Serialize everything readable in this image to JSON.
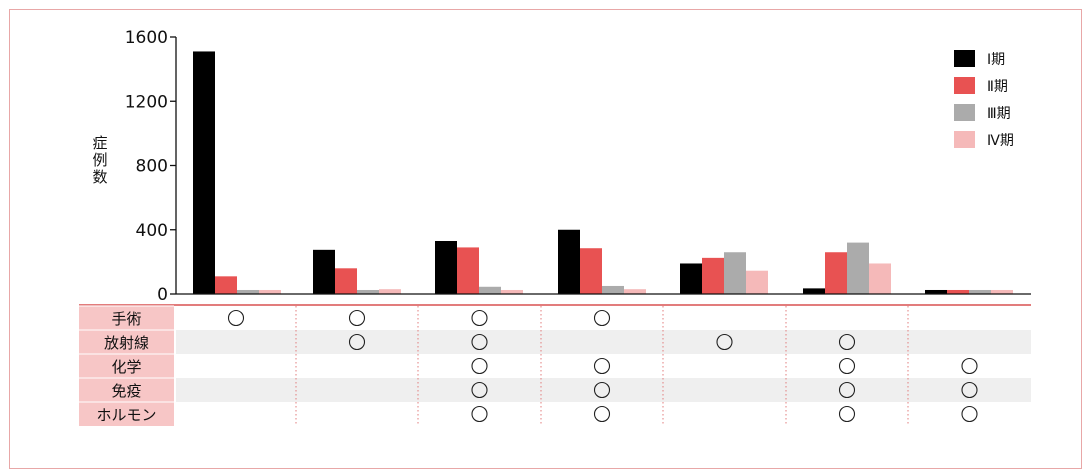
{
  "chart_data": {
    "type": "bar",
    "ylabel": "症例数",
    "ylim": [
      0,
      1600
    ],
    "yticks": [
      0,
      400,
      800,
      1200,
      1600
    ],
    "grid": false,
    "legend_position": "top-right",
    "categories": [
      "",
      "",
      "",
      "",
      "",
      "",
      ""
    ],
    "series": [
      {
        "name": "Ⅰ期",
        "color": "#000000",
        "values": [
          1510,
          275,
          330,
          400,
          190,
          35,
          25
        ]
      },
      {
        "name": "Ⅱ期",
        "color": "#e85252",
        "values": [
          110,
          160,
          290,
          285,
          225,
          260,
          25
        ]
      },
      {
        "name": "Ⅲ期",
        "color": "#ababab",
        "values": [
          25,
          25,
          45,
          50,
          260,
          320,
          25
        ]
      },
      {
        "name": "Ⅳ期",
        "color": "#f5b9b9",
        "values": [
          25,
          30,
          25,
          30,
          145,
          190,
          25
        ]
      }
    ]
  },
  "treatment_table": {
    "mark": "○",
    "rows": [
      {
        "label": "手術",
        "marks": [
          true,
          true,
          true,
          true,
          false,
          false,
          false
        ]
      },
      {
        "label": "放射線",
        "marks": [
          false,
          true,
          true,
          false,
          true,
          true,
          false
        ]
      },
      {
        "label": "化学",
        "marks": [
          false,
          false,
          true,
          true,
          false,
          true,
          true
        ]
      },
      {
        "label": "免疫",
        "marks": [
          false,
          false,
          true,
          true,
          false,
          true,
          true
        ]
      },
      {
        "label": "ホルモン",
        "marks": [
          false,
          false,
          true,
          true,
          false,
          true,
          true
        ]
      }
    ]
  },
  "colors": {
    "frame_border": "#e8a7a7",
    "label_bg": "#f7c6c6",
    "stripe_bg": "#efefef",
    "grid_dotted": "#e27c7c",
    "axis": "#111111"
  }
}
